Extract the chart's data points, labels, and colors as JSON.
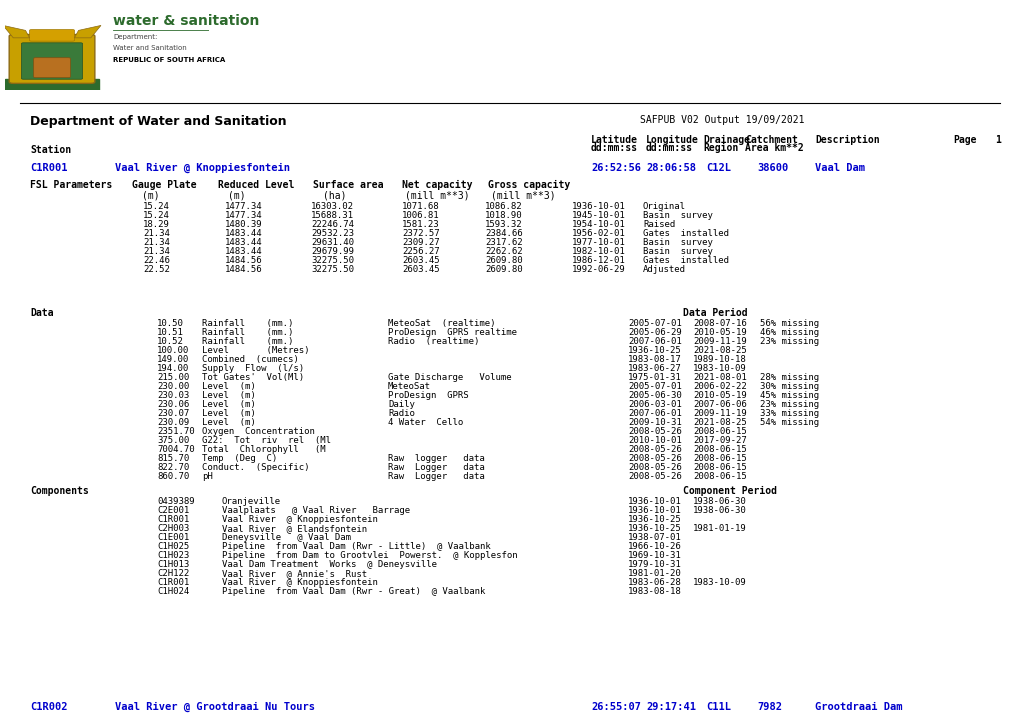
{
  "bg_color": "#ffffff",
  "header_dept": "Department of Water and Sanitation",
  "header_safpub": "SAFPUB V02 Output 19/09/2021",
  "station1_id": "C1R001",
  "station1_name": "Vaal River @ Knoppiesfontein",
  "station1_lat": "26:52:56",
  "station1_lon": "28:06:58",
  "station1_drainage": "C12L",
  "station1_catchment": "38600",
  "station1_desc": "Vaal Dam",
  "data_label": "Data",
  "data_period_label": "Data Period",
  "components_label": "Components",
  "component_period_label": "Component Period",
  "station2_id": "C1R002",
  "station2_name": "Vaal River @ Grootdraai Nu Tours",
  "station2_lat": "26:55:07",
  "station2_lon": "29:17:41",
  "station2_drainage": "C11L",
  "station2_catchment": "7982",
  "station2_desc": "Grootdraai Dam",
  "blue_color": "#0000cc",
  "text_color": "#000000",
  "mono_font": "monospace",
  "green_color": "#2d6b2d",
  "fsl_rows": [
    [
      "15.24",
      "1477.34",
      "16303.02",
      "1071.68",
      "1086.82",
      "1936-10-01",
      "Original"
    ],
    [
      "15.24",
      "1477.34",
      "15688.31",
      "1006.81",
      "1018.90",
      "1945-10-01",
      "Basin  survey"
    ],
    [
      "18.29",
      "1480.39",
      "22246.74",
      "1581.23",
      "1593.32",
      "1954-10-01",
      "Raised"
    ],
    [
      "21.34",
      "1483.44",
      "29532.23",
      "2372.57",
      "2384.66",
      "1956-02-01",
      "Gates  installed"
    ],
    [
      "21.34",
      "1483.44",
      "29631.40",
      "2309.27",
      "2317.62",
      "1977-10-01",
      "Basin  survey"
    ],
    [
      "21.34",
      "1483.44",
      "29679.99",
      "2256.27",
      "2262.62",
      "1982-10-01",
      "Basin  survey"
    ],
    [
      "22.46",
      "1484.56",
      "32275.50",
      "2603.45",
      "2609.80",
      "1986-12-01",
      "Gates  installed"
    ],
    [
      "22.52",
      "1484.56",
      "32275.50",
      "2603.45",
      "2609.80",
      "1992-06-29",
      "Adjusted"
    ]
  ],
  "data_rows": [
    [
      "10.50",
      "Rainfall    (mm.)",
      "MeteoSat  (realtime)",
      "2005-07-01",
      "2008-07-16",
      "56% missing"
    ],
    [
      "10.51",
      "Rainfall    (mm.)",
      "ProDesign  GPRS realtime",
      "2005-06-29",
      "2010-05-19",
      "46% missing"
    ],
    [
      "10.52",
      "Rainfall    (mm.)",
      "Radio  (realtime)",
      "2007-06-01",
      "2009-11-19",
      "23% missing"
    ],
    [
      "100.00",
      "Level       (Metres)",
      "",
      "1936-10-25",
      "2021-08-25",
      ""
    ],
    [
      "149.00",
      "Combined  (cumecs)",
      "",
      "1983-08-17",
      "1989-10-18",
      ""
    ],
    [
      "194.00",
      "Supply  Flow  (l/s)",
      "",
      "1983-06-27",
      "1983-10-09",
      ""
    ],
    [
      "215.00",
      "Tot Gates'  Vol(Ml)",
      "Gate Discharge   Volume",
      "1975-01-31",
      "2021-08-01",
      "28% missing"
    ],
    [
      "230.00",
      "Level  (m)",
      "MeteoSat",
      "2005-07-01",
      "2006-02-22",
      "30% missing"
    ],
    [
      "230.03",
      "Level  (m)",
      "ProDesign  GPRS",
      "2005-06-30",
      "2010-05-19",
      "45% missing"
    ],
    [
      "230.06",
      "Level  (m)",
      "Daily",
      "2006-03-01",
      "2007-06-06",
      "23% missing"
    ],
    [
      "230.07",
      "Level  (m)",
      "Radio",
      "2007-06-01",
      "2009-11-19",
      "33% missing"
    ],
    [
      "230.09",
      "Level  (m)",
      "4 Water  Cello",
      "2009-10-31",
      "2021-08-25",
      "54% missing"
    ],
    [
      "2351.70",
      "Oxygen  Concentration",
      "",
      "2008-05-26",
      "2008-06-15",
      ""
    ],
    [
      "375.00",
      "G22:  Tot  riv  rel  (Ml",
      "",
      "2010-10-01",
      "2017-09-27",
      ""
    ],
    [
      "7004.70",
      "Total  Chlorophyll   (M",
      "",
      "2008-05-26",
      "2008-06-15",
      ""
    ],
    [
      "815.70",
      "Temp  (Deg  C)",
      "Raw  logger   data",
      "2008-05-26",
      "2008-06-15",
      ""
    ],
    [
      "822.70",
      "Conduct.  (Specific)",
      "Raw  Logger   data",
      "2008-05-26",
      "2008-06-15",
      ""
    ],
    [
      "860.70",
      "pH",
      "Raw  Logger   data",
      "2008-05-26",
      "2008-06-15",
      ""
    ]
  ],
  "comp_rows": [
    [
      "0439389",
      "Oranjeville",
      "1936-10-01",
      "1938-06-30"
    ],
    [
      "C2E001",
      "Vaalplaats   @ Vaal River   Barrage",
      "1936-10-01",
      "1938-06-30"
    ],
    [
      "C1R001",
      "Vaal River  @ Knoppiesfontein",
      "1936-10-25",
      ""
    ],
    [
      "C2H003",
      "Vaal River  @ Elandsfontein",
      "1936-10-25",
      "1981-01-19"
    ],
    [
      "C1E001",
      "Deneysville   @ Vaal Dam",
      "1938-07-01",
      ""
    ],
    [
      "C1H025",
      "Pipeline  from Vaal Dam (Rwr - Little)  @ Vaalbank",
      "1966-10-26",
      ""
    ],
    [
      "C1H023",
      "Pipeline  from Dam to Grootvlei  Powerst.  @ Kopplesfon",
      "1969-10-31",
      ""
    ],
    [
      "C1H013",
      "Vaal Dam Treatment  Works  @ Deneysville",
      "1979-10-31",
      ""
    ],
    [
      "C2H122",
      "Vaal River  @ Annie's  Rust",
      "1981-01-20",
      ""
    ],
    [
      "C1R001",
      "Vaal River  @ Knoppiesfontein",
      "1983-06-28",
      "1983-10-09"
    ],
    [
      "C1H024",
      "Pipeline  from Vaal Dam (Rwr - Great)  @ Vaalbank",
      "1983-08-18",
      ""
    ]
  ]
}
